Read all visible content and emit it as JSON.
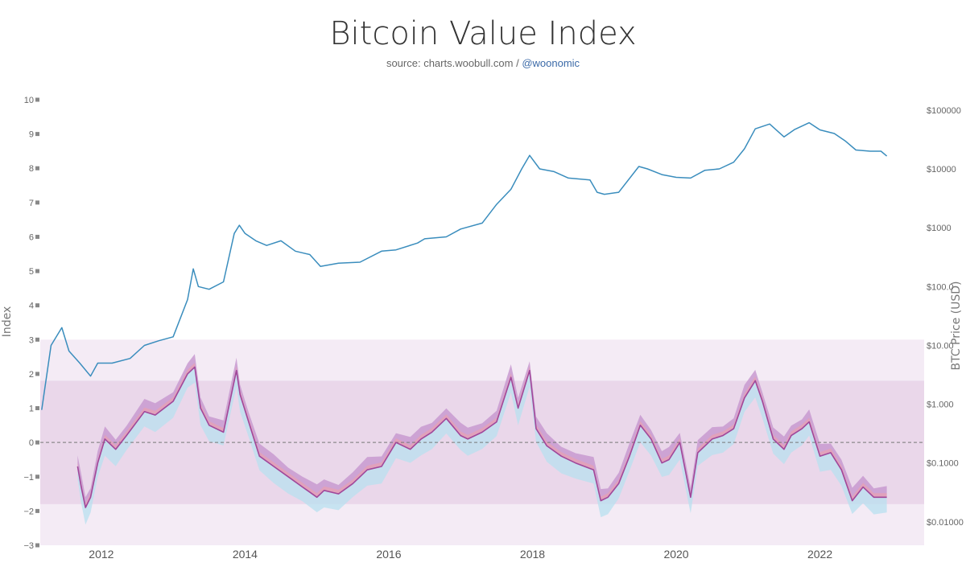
{
  "header": {
    "title": "Bitcoin Value Index",
    "source_prefix": "source: charts.woobull.com / ",
    "source_handle": "@woonomic"
  },
  "colors": {
    "price_line": "#3a8dbd",
    "index_line": "#a0479a",
    "band_outer": "#f4ebf5",
    "band_inner": "#ead7ea",
    "envelope_upper": "#c89ad0",
    "envelope_upper_hi": "#e9a0b0",
    "envelope_lower": "#b8e0ef",
    "zero_line": "#777777"
  },
  "chart_data": {
    "type": "line",
    "title": "Bitcoin Value Index",
    "subtitle": "source: charts.woobull.com / @woonomic",
    "xlabel": "",
    "ylabel_left": "Index",
    "ylabel_right": "BTC Price (USD)",
    "x_range": [
      2011.15,
      2023.45
    ],
    "y_left_range": [
      -3,
      10
    ],
    "y_right_scale": "log",
    "y_right_range": [
      0.004,
      150000
    ],
    "x_ticks": [
      "2012",
      "2014",
      "2016",
      "2018",
      "2020",
      "2022"
    ],
    "y_left_ticks": [
      "10",
      "9",
      "8",
      "7",
      "6",
      "5",
      "4",
      "3",
      "2",
      "1",
      "0",
      "−1",
      "−2",
      "−3"
    ],
    "y_right_ticks": [
      "$100000",
      "$10000",
      "$1000",
      "$100.0",
      "$10.00",
      "$1.000",
      "$0.1000",
      "$0.01000"
    ],
    "bands": [
      {
        "from": -3,
        "to": 3,
        "role": "outer"
      },
      {
        "from": -1.8,
        "to": 1.8,
        "role": "inner"
      }
    ],
    "zero_reference": 0,
    "series": [
      {
        "name": "BTC Price (USD)",
        "axis": "right",
        "x": [
          2011.17,
          2011.3,
          2011.45,
          2011.55,
          2011.7,
          2011.85,
          2011.95,
          2012.15,
          2012.4,
          2012.6,
          2012.8,
          2013.0,
          2013.2,
          2013.28,
          2013.35,
          2013.5,
          2013.7,
          2013.85,
          2013.92,
          2014.0,
          2014.15,
          2014.3,
          2014.5,
          2014.7,
          2014.9,
          2015.05,
          2015.3,
          2015.6,
          2015.9,
          2016.1,
          2016.4,
          2016.5,
          2016.8,
          2017.0,
          2017.3,
          2017.5,
          2017.7,
          2017.85,
          2017.96,
          2018.1,
          2018.3,
          2018.5,
          2018.8,
          2018.9,
          2019.0,
          2019.2,
          2019.48,
          2019.6,
          2019.8,
          2020.0,
          2020.2,
          2020.4,
          2020.6,
          2020.8,
          2020.95,
          2021.1,
          2021.3,
          2021.5,
          2021.65,
          2021.85,
          2022.0,
          2022.2,
          2022.35,
          2022.5,
          2022.7,
          2022.85,
          2022.93
        ],
        "values": [
          0.8,
          10,
          20,
          8,
          5,
          3,
          5,
          5,
          6,
          10,
          12,
          14,
          60,
          200,
          100,
          90,
          120,
          800,
          1100,
          800,
          600,
          500,
          600,
          400,
          350,
          220,
          250,
          260,
          400,
          420,
          550,
          650,
          700,
          950,
          1200,
          2500,
          4500,
          10000,
          17000,
          10000,
          9000,
          7000,
          6500,
          4000,
          3700,
          4000,
          11000,
          10000,
          8000,
          7200,
          7000,
          9500,
          10000,
          13000,
          22000,
          48000,
          58000,
          35000,
          47000,
          61000,
          46000,
          40000,
          30000,
          21000,
          20000,
          20000,
          16500
        ]
      },
      {
        "name": "Index",
        "axis": "left",
        "x": [
          2011.67,
          2011.72,
          2011.78,
          2011.85,
          2011.95,
          2012.05,
          2012.2,
          2012.35,
          2012.6,
          2012.75,
          2013.0,
          2013.2,
          2013.3,
          2013.38,
          2013.5,
          2013.7,
          2013.88,
          2013.93,
          2014.05,
          2014.2,
          2014.4,
          2014.6,
          2014.8,
          2015.0,
          2015.1,
          2015.3,
          2015.5,
          2015.7,
          2015.9,
          2016.1,
          2016.3,
          2016.45,
          2016.6,
          2016.8,
          2017.0,
          2017.1,
          2017.3,
          2017.5,
          2017.7,
          2017.8,
          2017.96,
          2018.05,
          2018.2,
          2018.4,
          2018.6,
          2018.85,
          2018.95,
          2019.05,
          2019.2,
          2019.35,
          2019.5,
          2019.65,
          2019.8,
          2019.9,
          2020.05,
          2020.2,
          2020.3,
          2020.5,
          2020.65,
          2020.8,
          2020.95,
          2021.1,
          2021.2,
          2021.35,
          2021.5,
          2021.6,
          2021.75,
          2021.85,
          2022.0,
          2022.15,
          2022.3,
          2022.45,
          2022.6,
          2022.75,
          2022.93
        ],
        "values": [
          -0.7,
          -1.3,
          -1.9,
          -1.6,
          -0.6,
          0.1,
          -0.2,
          0.2,
          0.9,
          0.8,
          1.2,
          2.0,
          2.2,
          1.0,
          0.5,
          0.3,
          2.1,
          1.4,
          0.6,
          -0.4,
          -0.7,
          -1.0,
          -1.3,
          -1.6,
          -1.4,
          -1.5,
          -1.2,
          -0.8,
          -0.7,
          0.0,
          -0.2,
          0.1,
          0.3,
          0.7,
          0.2,
          0.1,
          0.3,
          0.6,
          1.9,
          1.0,
          2.1,
          0.4,
          -0.1,
          -0.4,
          -0.6,
          -0.8,
          -1.7,
          -1.6,
          -1.2,
          -0.4,
          0.5,
          0.1,
          -0.6,
          -0.5,
          0.0,
          -1.6,
          -0.3,
          0.1,
          0.2,
          0.4,
          1.3,
          1.8,
          1.2,
          0.1,
          -0.2,
          0.2,
          0.4,
          0.6,
          -0.4,
          -0.3,
          -0.8,
          -1.7,
          -1.3,
          -1.6,
          -1.6
        ]
      }
    ]
  }
}
